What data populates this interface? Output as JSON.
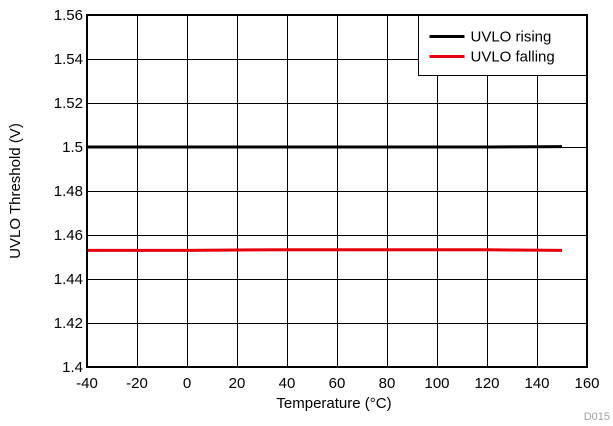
{
  "chart_data": {
    "type": "line",
    "xlabel": "Temperature (°C)",
    "ylabel": "UVLO Threshold (V)",
    "xlim": [
      -40,
      160
    ],
    "ylim": [
      1.4,
      1.56
    ],
    "x_ticks": [
      "-40",
      "-20",
      "0",
      "20",
      "40",
      "60",
      "80",
      "100",
      "120",
      "140",
      "160"
    ],
    "y_ticks": [
      "1.4",
      "1.42",
      "1.44",
      "1.46",
      "1.48",
      "1.5",
      "1.52",
      "1.54",
      "1.56"
    ],
    "x_tick_values": [
      -40,
      -20,
      0,
      20,
      40,
      60,
      80,
      100,
      120,
      140,
      160
    ],
    "y_tick_values": [
      1.4,
      1.42,
      1.44,
      1.46,
      1.48,
      1.5,
      1.52,
      1.54,
      1.56
    ],
    "grid": true,
    "legend_position": "top-right",
    "series": [
      {
        "name": "UVLO rising",
        "color": "#000000",
        "x": [
          -40,
          0,
          40,
          80,
          120,
          150
        ],
        "y": [
          1.5,
          1.5,
          1.5,
          1.5,
          1.5,
          1.5002
        ]
      },
      {
        "name": "UVLO falling",
        "color": "#e8000b",
        "x": [
          -40,
          -20,
          0,
          20,
          40,
          80,
          120,
          130,
          150
        ],
        "y": [
          1.453,
          1.453,
          1.453,
          1.4532,
          1.4533,
          1.4533,
          1.4533,
          1.4532,
          1.453
        ]
      }
    ],
    "code_label": "D015"
  }
}
